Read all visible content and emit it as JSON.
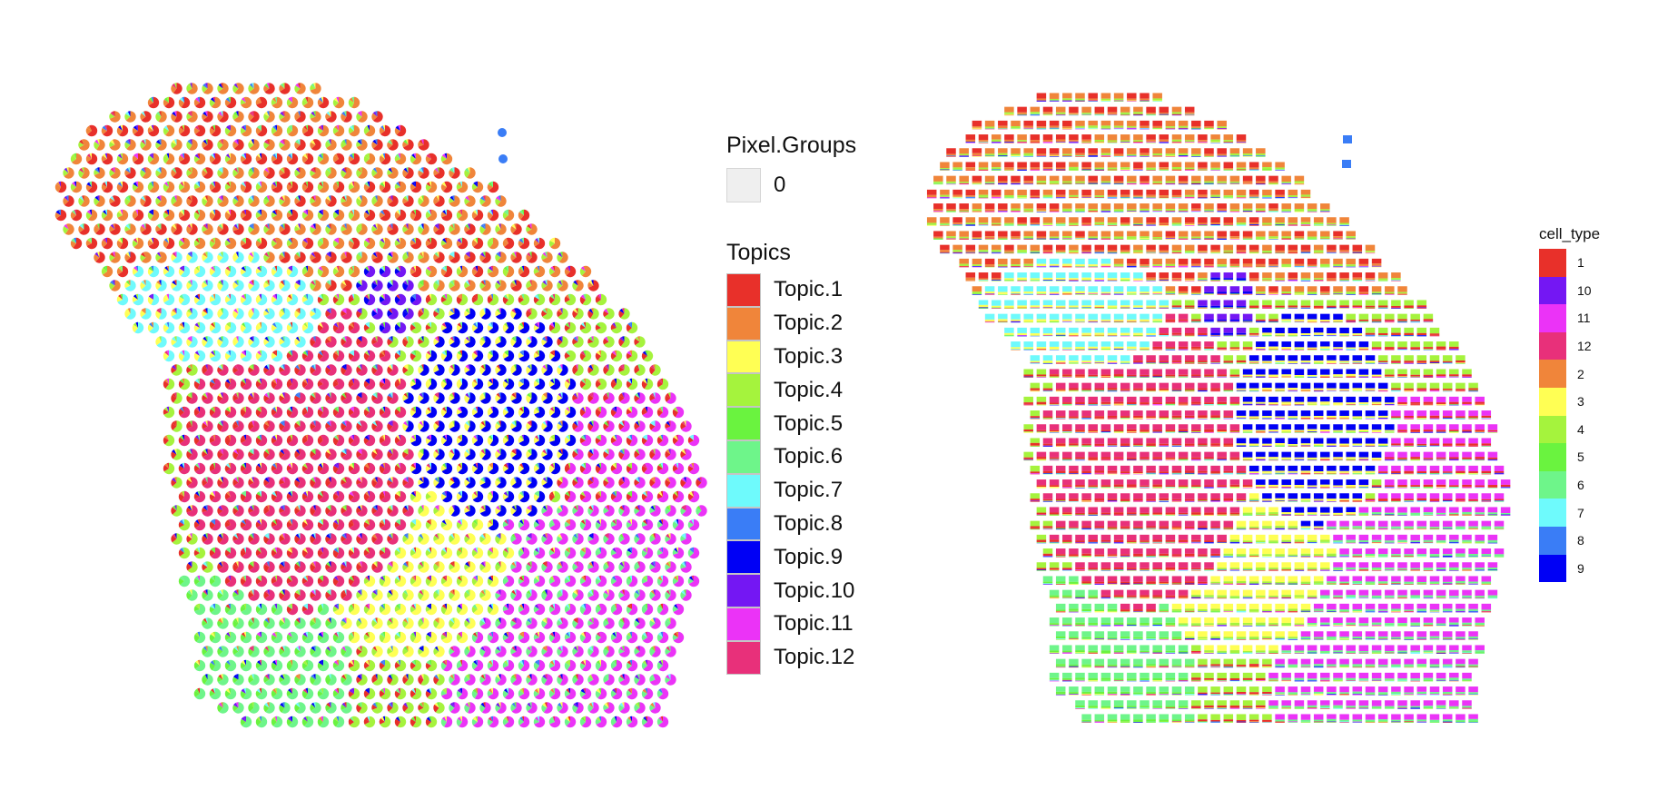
{
  "chart_data": [
    {
      "type": "scatter",
      "marker": "pie",
      "description_keys": [
        "topics",
        "pixel_groups"
      ],
      "legends": {
        "pixel_groups": {
          "title": "Pixel.Groups",
          "entries": [
            "0"
          ]
        },
        "topics": {
          "title": "Topics",
          "entries": [
            {
              "label": "Topic.1",
              "color": "#E8302A"
            },
            {
              "label": "Topic.2",
              "color": "#F0853A"
            },
            {
              "label": "Topic.3",
              "color": "#FFFF54"
            },
            {
              "label": "Topic.4",
              "color": "#A5F33D"
            },
            {
              "label": "Topic.5",
              "color": "#6AF33F"
            },
            {
              "label": "Topic.6",
              "color": "#6EF58A"
            },
            {
              "label": "Topic.7",
              "color": "#6EFAFC"
            },
            {
              "label": "Topic.8",
              "color": "#3A7DF6"
            },
            {
              "label": "Topic.9",
              "color": "#0000F5"
            },
            {
              "label": "Topic.10",
              "color": "#7417F3"
            },
            {
              "label": "Topic.11",
              "color": "#EB33F7"
            },
            {
              "label": "Topic.12",
              "color": "#E8307A"
            }
          ]
        }
      },
      "grid": false,
      "axes": false
    },
    {
      "type": "scatter",
      "marker": "stacked-bar",
      "grid": false,
      "axes": false,
      "legends": {
        "cell_type": {
          "title": "cell_type",
          "entries": [
            {
              "label": "1",
              "color": "#E8302A"
            },
            {
              "label": "10",
              "color": "#7417F3"
            },
            {
              "label": "11",
              "color": "#EB33F7"
            },
            {
              "label": "12",
              "color": "#E8307A"
            },
            {
              "label": "2",
              "color": "#F0853A"
            },
            {
              "label": "3",
              "color": "#FFFF54"
            },
            {
              "label": "4",
              "color": "#A5F33D"
            },
            {
              "label": "5",
              "color": "#6AF33F"
            },
            {
              "label": "6",
              "color": "#6EF58A"
            },
            {
              "label": "7",
              "color": "#6EFAFC"
            },
            {
              "label": "8",
              "color": "#3A7DF6"
            },
            {
              "label": "9",
              "color": "#0000F5"
            }
          ]
        }
      }
    }
  ]
}
